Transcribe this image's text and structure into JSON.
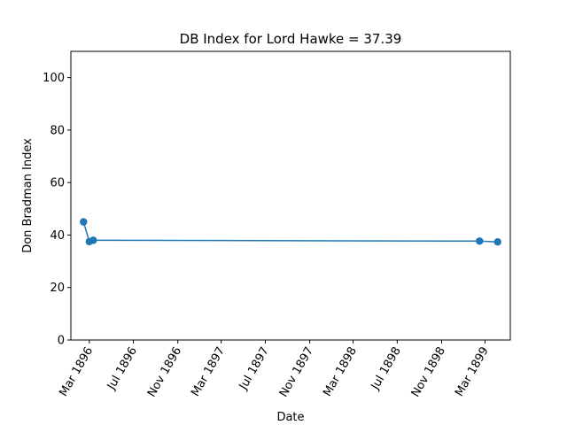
{
  "chart_data": {
    "type": "line",
    "title": "DB Index for Lord Hawke = 37.39",
    "xlabel": "Date",
    "ylabel": "Don Bradman Index",
    "xlim": [
      "1896-01-10",
      "1899-05-10"
    ],
    "ylim": [
      0,
      110
    ],
    "x_ticks": [
      "1896-03-01",
      "1896-07-01",
      "1896-11-01",
      "1897-03-01",
      "1897-07-01",
      "1897-11-01",
      "1898-03-01",
      "1898-07-01",
      "1898-11-01",
      "1899-03-01"
    ],
    "x_tick_labels": [
      "Mar 1896",
      "Jul 1896",
      "Nov 1896",
      "Mar 1897",
      "Jul 1897",
      "Nov 1897",
      "Mar 1898",
      "Jul 1898",
      "Nov 1898",
      "Mar 1899"
    ],
    "y_ticks": [
      0,
      20,
      40,
      60,
      80,
      100
    ],
    "y_tick_labels": [
      "0",
      "20",
      "40",
      "60",
      "80",
      "100"
    ],
    "grid": false,
    "legend": "none",
    "series": [
      {
        "color": "#1f77b4",
        "marker": "circle",
        "x": [
          "1896-02-14",
          "1896-03-01",
          "1896-03-12",
          "1899-02-14",
          "1899-04-05"
        ],
        "y": [
          45.0,
          37.5,
          38.0,
          37.7,
          37.39
        ]
      }
    ]
  }
}
